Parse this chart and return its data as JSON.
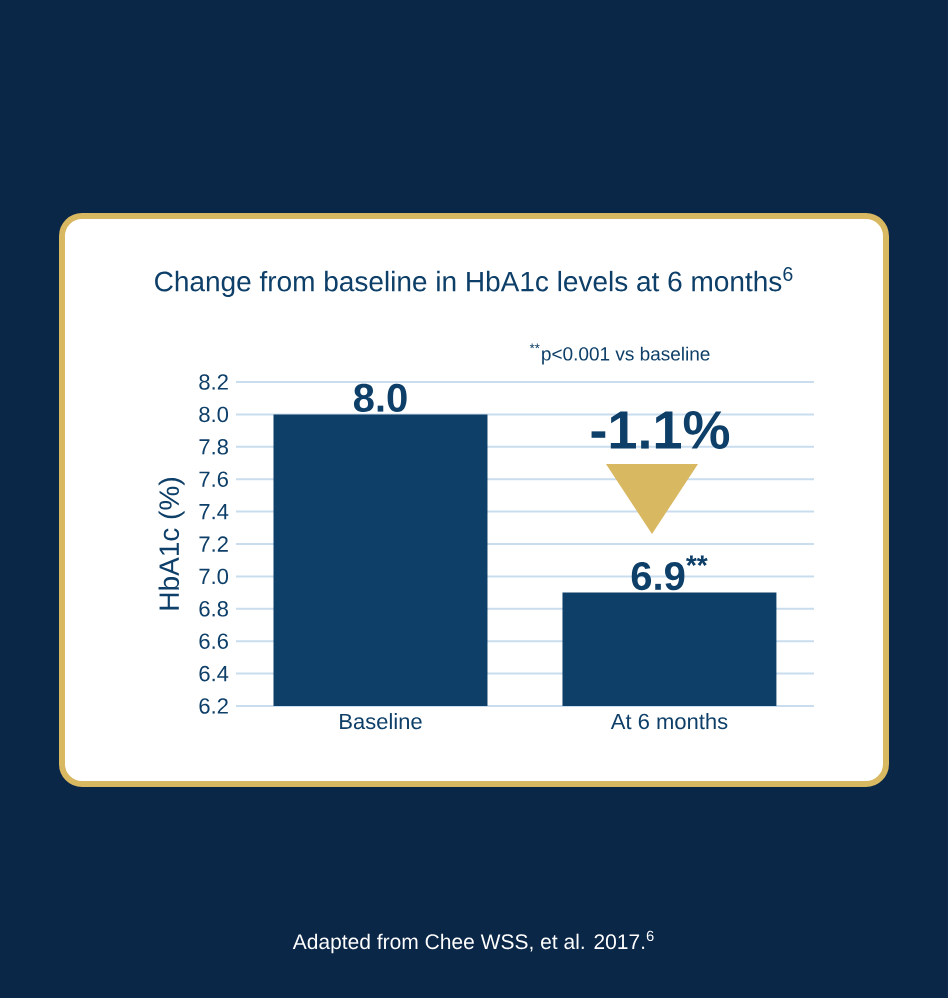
{
  "chart_data": {
    "type": "bar",
    "title": "Change from baseline in HbA1c levels at 6 months$^{6}$",
    "ylabel": "HbA1c (%)",
    "categories": [
      "Baseline",
      "At 6 months"
    ],
    "values": [
      8.0,
      6.9
    ],
    "color": "#0e3f68",
    "value_labels": [
      "8.0",
      "6.9$^{**}$"
    ],
    "ylim": [
      6.2,
      8.2
    ],
    "yticks": [
      6.2,
      6.4,
      6.6,
      6.8,
      {
        "value": 7.0,
        "label": "7.0"
      },
      7.2,
      7.4,
      7.6,
      7.8,
      {
        "value": 8.0,
        "label": "8.0"
      },
      8.2
    ],
    "grid": "y",
    "annotations": [
      "$^{**}$p<0.001 vs baseline",
      "-1.1%",
      "Adapted from Chee WSS, et al. 2017.$^{6}$"
    ]
  }
}
